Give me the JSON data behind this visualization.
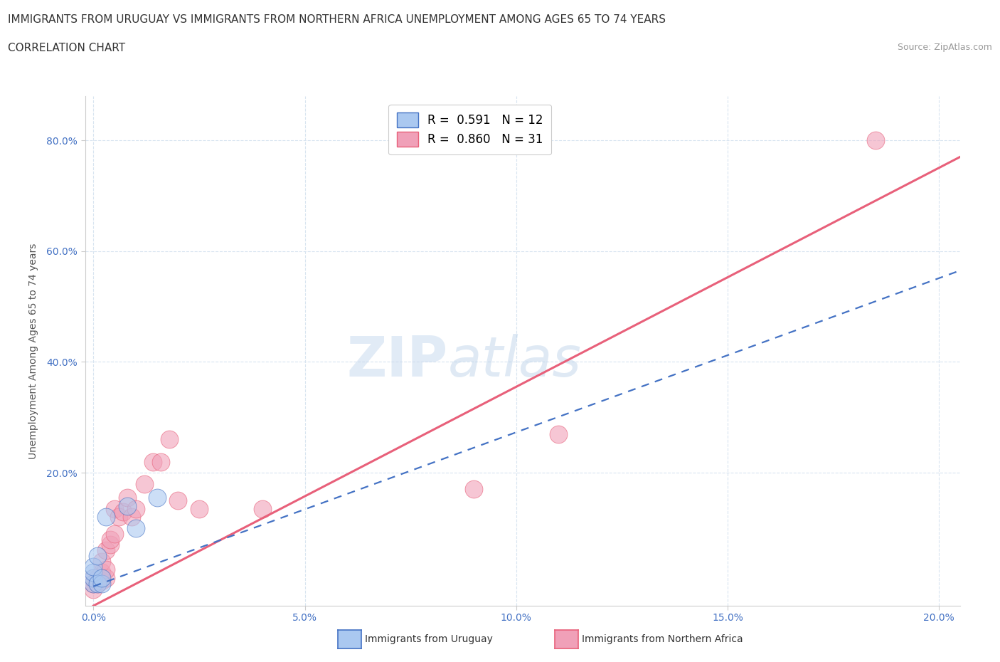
{
  "title_line1": "IMMIGRANTS FROM URUGUAY VS IMMIGRANTS FROM NORTHERN AFRICA UNEMPLOYMENT AMONG AGES 65 TO 74 YEARS",
  "title_line2": "CORRELATION CHART",
  "source_text": "Source: ZipAtlas.com",
  "ylabel": "Unemployment Among Ages 65 to 74 years",
  "xmin": -0.002,
  "xmax": 0.205,
  "ymin": -0.04,
  "ymax": 0.88,
  "x_tick_labels": [
    "0.0%",
    "5.0%",
    "10.0%",
    "15.0%",
    "20.0%"
  ],
  "x_tick_values": [
    0.0,
    0.05,
    0.1,
    0.15,
    0.2
  ],
  "y_tick_labels": [
    "20.0%",
    "40.0%",
    "60.0%",
    "80.0%"
  ],
  "y_tick_values": [
    0.2,
    0.4,
    0.6,
    0.8
  ],
  "uruguay_color": "#aac8f0",
  "northern_africa_color": "#f0a0b8",
  "uruguay_line_color": "#4472c4",
  "northern_africa_line_color": "#e8607a",
  "uruguay_scatter_x": [
    0.0,
    0.0,
    0.0,
    0.0,
    0.001,
    0.001,
    0.002,
    0.002,
    0.003,
    0.008,
    0.01,
    0.015
  ],
  "uruguay_scatter_y": [
    0.0,
    0.01,
    0.02,
    0.03,
    0.0,
    0.05,
    0.0,
    0.01,
    0.12,
    0.14,
    0.1,
    0.155
  ],
  "northern_africa_scatter_x": [
    0.0,
    0.0,
    0.0,
    0.001,
    0.001,
    0.001,
    0.002,
    0.002,
    0.002,
    0.003,
    0.003,
    0.003,
    0.004,
    0.004,
    0.005,
    0.005,
    0.006,
    0.007,
    0.008,
    0.009,
    0.01,
    0.012,
    0.014,
    0.016,
    0.018,
    0.02,
    0.025,
    0.04,
    0.09,
    0.11,
    0.185
  ],
  "northern_africa_scatter_y": [
    -0.01,
    0.0,
    0.01,
    0.0,
    0.005,
    0.01,
    0.005,
    0.02,
    0.04,
    0.01,
    0.025,
    0.06,
    0.07,
    0.08,
    0.09,
    0.135,
    0.12,
    0.13,
    0.155,
    0.12,
    0.135,
    0.18,
    0.22,
    0.22,
    0.26,
    0.15,
    0.135,
    0.135,
    0.17,
    0.27,
    0.8
  ],
  "naf_line_x0": 0.0,
  "naf_line_y0": -0.04,
  "naf_line_x1": 0.205,
  "naf_line_y1": 0.77,
  "ury_line_x0": 0.0,
  "ury_line_y0": -0.005,
  "ury_line_x1": 0.205,
  "ury_line_y1": 0.565,
  "background_color": "#ffffff",
  "grid_color": "#d8e4f0",
  "title_fontsize": 11,
  "axis_fontsize": 10,
  "tick_fontsize": 10
}
